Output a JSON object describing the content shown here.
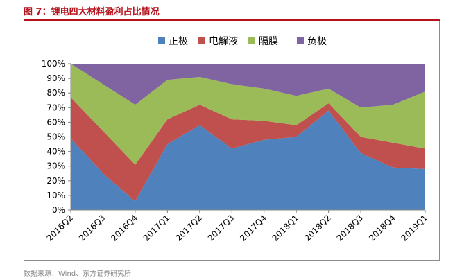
{
  "figure_title": "图 7：锂电四大材料盈利占比情况",
  "source_note": "数据来源：Wind、东方证券研究所",
  "chart_data": {
    "type": "area",
    "stacked": true,
    "title": "",
    "xlabel": "",
    "ylabel": "",
    "ylim": [
      0,
      100
    ],
    "y_tick_labels": [
      "0%",
      "10%",
      "20%",
      "30%",
      "40%",
      "50%",
      "60%",
      "70%",
      "80%",
      "90%",
      "100%"
    ],
    "legend_position": "top",
    "categories": [
      "2016Q2",
      "2016Q3",
      "2016Q4",
      "2017Q1",
      "2017Q2",
      "2017Q3",
      "2017Q4",
      "2018Q1",
      "2018Q2",
      "2018Q3",
      "2018Q4",
      "2019Q1"
    ],
    "series": [
      {
        "name": "正极",
        "color": "#4f81bd",
        "values": [
          49,
          25,
          6,
          45,
          58,
          42,
          48,
          50,
          68,
          39,
          29,
          28
        ]
      },
      {
        "name": "电解液",
        "color": "#c0504d",
        "values": [
          28,
          29,
          25,
          17,
          14,
          20,
          13,
          8,
          5,
          11,
          17,
          14
        ]
      },
      {
        "name": "隔膜",
        "color": "#9bbb59",
        "values": [
          23,
          32,
          41,
          27,
          19,
          24,
          22,
          20,
          10,
          20,
          26,
          39
        ]
      },
      {
        "name": "负极",
        "color": "#8064a2",
        "values": [
          0,
          14,
          28,
          11,
          9,
          14,
          17,
          22,
          17,
          30,
          28,
          19
        ]
      }
    ]
  }
}
